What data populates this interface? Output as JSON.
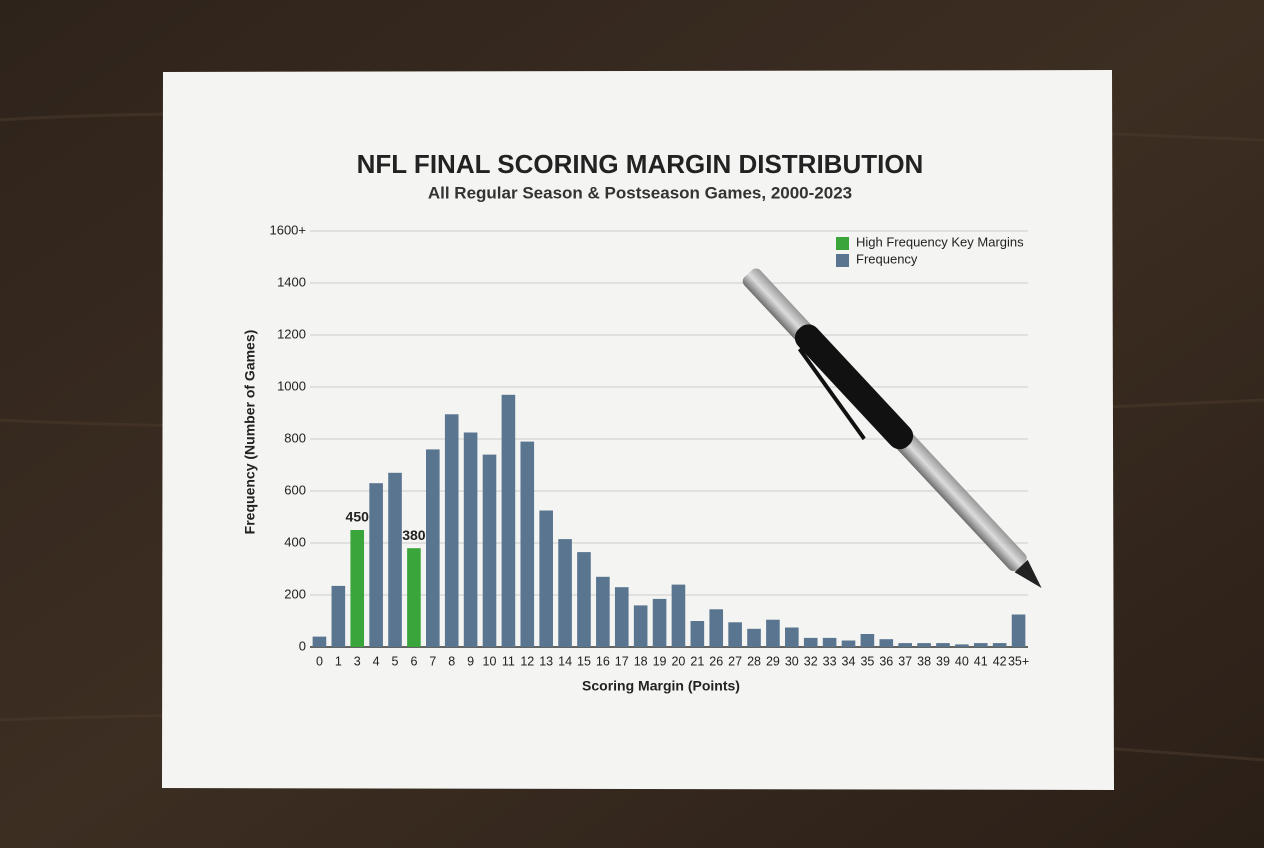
{
  "chart_data": {
    "type": "bar",
    "title": "NFL FINAL SCORING MARGIN DISTRIBUTION",
    "subtitle": "All Regular Season & Postseason Games, 2000-2023",
    "x_label": "Scoring Margin (Points)",
    "y_label": "Frequency (Number of Games)",
    "categories": [
      "0",
      "1",
      "3",
      "4",
      "5",
      "6",
      "7",
      "8",
      "9",
      "10",
      "11",
      "12",
      "13",
      "14",
      "15",
      "16",
      "17",
      "18",
      "19",
      "20",
      "21",
      "26",
      "27",
      "28",
      "29",
      "30",
      "32",
      "33",
      "34",
      "35",
      "36",
      "37",
      "38",
      "39",
      "40",
      "41",
      "42",
      "35+"
    ],
    "series": [
      {
        "name": "High Frequency Key Margins",
        "color": "#3aa53a",
        "values": [
          null,
          null,
          450,
          null,
          null,
          380,
          null,
          null,
          null,
          null,
          null,
          null,
          null,
          null,
          null,
          null,
          null,
          null,
          null,
          null,
          null,
          null,
          null,
          null,
          null,
          null,
          null,
          null,
          null,
          null,
          null,
          null,
          null,
          null,
          null,
          null,
          null,
          null
        ],
        "show_value_labels": true
      },
      {
        "name": "Frequency",
        "color": "#5a7590",
        "values": [
          40,
          235,
          null,
          630,
          670,
          null,
          760,
          895,
          825,
          740,
          970,
          790,
          525,
          415,
          365,
          270,
          230,
          160,
          185,
          240,
          100,
          145,
          95,
          70,
          105,
          75,
          35,
          35,
          25,
          50,
          30,
          15,
          15,
          15,
          10,
          15,
          15,
          125
        ]
      }
    ],
    "ylim": [
      0,
      1600
    ],
    "yticks": [
      0,
      200,
      400,
      600,
      800,
      1000,
      1200,
      1400,
      {
        "value": 1600,
        "label": "1600+"
      }
    ],
    "grid": true,
    "legend": "top-right"
  }
}
